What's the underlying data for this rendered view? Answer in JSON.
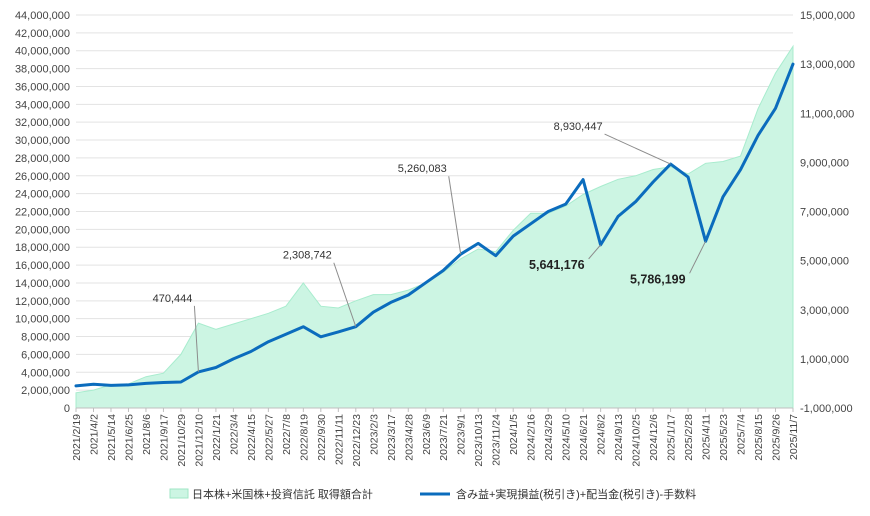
{
  "chart_data": {
    "type": "line",
    "title": "",
    "xlabel": "",
    "ylabel": "",
    "grid": true,
    "legend_position": "bottom",
    "y_left": {
      "min": 0,
      "max": 44000000,
      "step": 2000000,
      "tick_labels": [
        "0",
        "2,000,000",
        "4,000,000",
        "6,000,000",
        "8,000,000",
        "10,000,000",
        "12,000,000",
        "14,000,000",
        "16,000,000",
        "18,000,000",
        "20,000,000",
        "22,000,000",
        "24,000,000",
        "26,000,000",
        "28,000,000",
        "30,000,000",
        "32,000,000",
        "34,000,000",
        "36,000,000",
        "38,000,000",
        "40,000,000",
        "42,000,000",
        "44,000,000"
      ]
    },
    "y_right": {
      "min": -1000000,
      "max": 15000000,
      "step": 2000000,
      "tick_labels": [
        "-1,000,000",
        "1,000,000",
        "3,000,000",
        "5,000,000",
        "7,000,000",
        "9,000,000",
        "11,000,000",
        "13,000,000",
        "15,000,000"
      ]
    },
    "x_tick_labels": [
      "2021/2/19",
      "2021/4/2",
      "2021/5/14",
      "2021/6/25",
      "2021/8/6",
      "2021/9/17",
      "2021/10/29",
      "2021/12/10",
      "2022/1/21",
      "2022/3/4",
      "2022/4/15",
      "2022/5/27",
      "2022/7/8",
      "2022/8/19",
      "2022/9/30",
      "2022/11/11",
      "2022/12/23",
      "2023/2/3",
      "2023/3/17",
      "2023/4/28",
      "2023/6/9",
      "2023/7/21",
      "2023/9/1",
      "2023/10/13",
      "2023/11/24",
      "2024/1/5",
      "2024/2/16",
      "2024/3/29",
      "2024/5/10",
      "2024/6/21",
      "2024/8/2",
      "2024/9/13",
      "2024/10/25",
      "2024/12/6",
      "2025/1/17",
      "2025/2/28",
      "2025/4/11",
      "2025/5/23",
      "2025/7/4",
      "2025/8/15",
      "2025/9/26",
      "2025/11/7"
    ],
    "series": [
      {
        "name": "日本株+米国株+投資信託 取得額合計",
        "type": "area",
        "axis": "left",
        "color": "#ccf5e3",
        "values": [
          1700000,
          2000000,
          2600000,
          2700000,
          3500000,
          3900000,
          6000000,
          9500000,
          8800000,
          9400000,
          10000000,
          10600000,
          11400000,
          14000000,
          11400000,
          11200000,
          12000000,
          12700000,
          12700000,
          13200000,
          14000000,
          15200000,
          16700000,
          17800000,
          17500000,
          19900000,
          21800000,
          21800000,
          22600000,
          23900000,
          24800000,
          25600000,
          26000000,
          26700000,
          27000000,
          26200000,
          27400000,
          27600000,
          28200000,
          33500000,
          37500000,
          40500000
        ]
      },
      {
        "name": "含み益+実現損益(税引き)+配当金(税引き)-手数料",
        "type": "line",
        "axis": "right",
        "color": "#0b6cbd",
        "values": [
          -100000,
          -30000,
          -80000,
          -60000,
          0,
          40000,
          60000,
          470444,
          650000,
          1000000,
          1300000,
          1700000,
          2000000,
          2308742,
          1900000,
          2100000,
          2308742,
          2900000,
          3300000,
          3600000,
          4100000,
          4600000,
          5260083,
          5700000,
          5200000,
          6000000,
          6500000,
          7000000,
          7300000,
          8300000,
          5641176,
          6800000,
          7400000,
          8200000,
          8930447,
          8400000,
          5786199,
          7600000,
          8700000,
          10100000,
          11200000,
          13000000
        ]
      }
    ],
    "annotations": [
      {
        "text": "470,444",
        "x_index": 7,
        "value": 470444,
        "bold": false
      },
      {
        "text": "2,308,742",
        "x_index": 16,
        "value": 2308742,
        "bold": false
      },
      {
        "text": "5,260,083",
        "x_index": 22,
        "value": 5260083,
        "bold": false
      },
      {
        "text": "8,930,447",
        "x_index": 34,
        "value": 8930447,
        "bold": false
      },
      {
        "text": "5,641,176",
        "x_index": 30,
        "value": 5641176,
        "bold": true
      },
      {
        "text": "5,786,199",
        "x_index": 36,
        "value": 5786199,
        "bold": true
      }
    ]
  }
}
